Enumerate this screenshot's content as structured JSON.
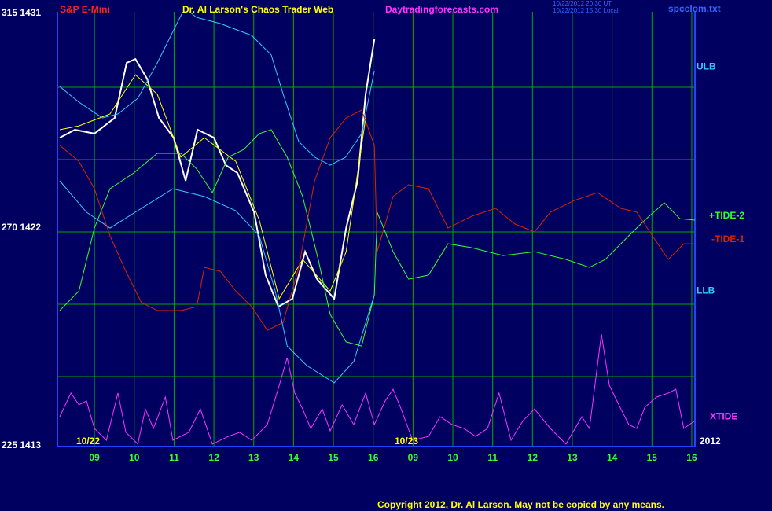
{
  "chart_data": {
    "type": "line",
    "title": "S&P E-Mini",
    "subtitle": "Dr. Al Larson's Chaos Trader Web",
    "site": "Daytradingforecasts.com",
    "timestamps": [
      "10/22/2012 20:30 UT",
      "10/22/2012 15:30 Local"
    ],
    "file": "spcclom.txt",
    "copyright": "Copyright 2012, Dr. Al Larson. May not be copied by any means.",
    "annotations": [
      "10/22",
      "10/23",
      "2012"
    ],
    "xlim": [
      8.07,
      24.08
    ],
    "ylim": [
      1413.1,
      1431.13
    ],
    "xticks": [
      {
        "value": 9,
        "label": "09"
      },
      10,
      11,
      12,
      13,
      14,
      15,
      16,
      {
        "value": 17,
        "label": "09"
      },
      {
        "value": 18,
        "label": "10"
      },
      {
        "value": 19,
        "label": "11"
      },
      {
        "value": 20,
        "label": "12"
      },
      {
        "value": 21,
        "label": "13"
      },
      {
        "value": 22,
        "label": "14"
      },
      {
        "value": 23,
        "label": "15"
      },
      {
        "value": 24,
        "label": "16"
      }
    ],
    "yticks": [
      {
        "value": 1431,
        "label": "315 1431"
      },
      {
        "value": 1422,
        "label": "270 1422"
      },
      {
        "value": 1413,
        "label": "225 1413"
      }
    ],
    "ygrid": [
      1416,
      1419,
      1422,
      1425,
      1428
    ],
    "grid": true,
    "series": [
      {
        "color": "#ffffff",
        "x": [
          8.13,
          8.51,
          9.0,
          9.51,
          9.81,
          10.03,
          10.32,
          10.62,
          10.99,
          11.29,
          11.59,
          12.0,
          12.3,
          12.59,
          13.01,
          13.3,
          13.62,
          13.97,
          14.29,
          14.59,
          15.02,
          15.32,
          15.61,
          15.81,
          16.03
        ],
        "values": [
          1425.91,
          1426.24,
          1426.08,
          1426.73,
          1429.01,
          1429.17,
          1428.36,
          1426.73,
          1425.91,
          1424.12,
          1426.24,
          1425.91,
          1424.77,
          1424.45,
          1422.82,
          1420.21,
          1418.9,
          1419.23,
          1421.18,
          1420.04,
          1419.23,
          1422.16,
          1424.12,
          1427.71,
          1429.99
        ]
      },
      {
        "color": "#ffff00",
        "x": [
          8.13,
          8.61,
          9.39,
          10.03,
          10.58,
          11.17,
          11.76,
          12.55,
          13.14,
          13.64,
          14.23,
          14.92,
          15.32,
          15.81
        ],
        "values": [
          1426.24,
          1426.4,
          1426.89,
          1428.52,
          1427.71,
          1425.1,
          1425.91,
          1424.93,
          1422.49,
          1419.23,
          1420.86,
          1419.55,
          1421.18,
          1426.73
        ]
      },
      {
        "name": "ULB",
        "color": "#33ccff",
        "x": [
          8.13,
          8.61,
          9.2,
          9.59,
          10.09,
          10.58,
          10.97,
          11.27,
          11.56,
          12.16,
          12.95,
          13.44,
          13.74,
          14.13,
          14.53,
          14.92,
          15.31,
          15.71,
          16.03
        ],
        "values": [
          1428.03,
          1427.38,
          1426.73,
          1426.89,
          1427.54,
          1429.01,
          1430.31,
          1431.29,
          1430.9,
          1430.64,
          1430.15,
          1429.34,
          1427.71,
          1425.75,
          1425.1,
          1424.77,
          1425.1,
          1426.08,
          1428.68
        ]
      },
      {
        "name": "+TIDE-2",
        "color": "#33ff33",
        "x": [
          8.13,
          8.61,
          9.0,
          9.39,
          9.99,
          10.58,
          11.17,
          11.57,
          11.96,
          12.36,
          12.75,
          13.14,
          13.44,
          13.84,
          14.23,
          14.62,
          14.92,
          15.32,
          15.71,
          16.03,
          16.1,
          16.5,
          16.89,
          17.39,
          17.88,
          18.47,
          19.26,
          20.05,
          20.84,
          21.43,
          21.83,
          22.42,
          22.82,
          23.31,
          23.7,
          24.08
        ],
        "values": [
          1418.74,
          1419.55,
          1422.16,
          1423.79,
          1424.45,
          1425.26,
          1425.26,
          1424.61,
          1423.63,
          1425.1,
          1425.42,
          1426.08,
          1426.24,
          1425.1,
          1423.47,
          1420.86,
          1418.58,
          1417.44,
          1417.27,
          1419.39,
          1422.82,
          1421.18,
          1420.04,
          1420.21,
          1421.51,
          1421.35,
          1421.02,
          1421.18,
          1420.86,
          1420.53,
          1420.86,
          1421.84,
          1422.49,
          1423.21,
          1422.55,
          1422.49
        ]
      },
      {
        "name": "-TIDE-1",
        "color": "#dd2200",
        "x": [
          8.13,
          8.61,
          9.0,
          9.39,
          9.79,
          10.18,
          10.58,
          11.17,
          11.57,
          11.76,
          12.16,
          12.55,
          12.95,
          13.34,
          13.74,
          14.13,
          14.53,
          14.92,
          15.32,
          15.71,
          16.03,
          16.1,
          16.5,
          16.89,
          17.39,
          17.88,
          18.47,
          19.07,
          19.56,
          20.05,
          20.45,
          21.04,
          21.63,
          22.22,
          22.62,
          23.01,
          23.41,
          23.8,
          24.08
        ],
        "values": [
          1425.59,
          1424.93,
          1423.79,
          1421.84,
          1420.37,
          1419.07,
          1418.74,
          1418.74,
          1418.9,
          1420.53,
          1420.37,
          1419.55,
          1418.9,
          1417.92,
          1418.25,
          1420.53,
          1424.12,
          1425.91,
          1426.73,
          1427.05,
          1425.59,
          1421.18,
          1423.47,
          1423.96,
          1423.79,
          1422.16,
          1422.65,
          1422.98,
          1422.33,
          1422.0,
          1422.82,
          1423.3,
          1423.63,
          1422.98,
          1422.82,
          1421.84,
          1420.86,
          1421.51,
          1421.51
        ]
      },
      {
        "name": "LLB",
        "color": "#33ccff",
        "x": [
          8.13,
          8.8,
          9.39,
          10.18,
          10.97,
          11.76,
          12.55,
          13.14,
          13.54,
          13.84,
          14.33,
          15.02,
          15.51,
          16.03
        ],
        "values": [
          1424.12,
          1422.82,
          1422.16,
          1422.98,
          1423.79,
          1423.47,
          1422.88,
          1421.84,
          1419.55,
          1417.27,
          1416.46,
          1415.74,
          1416.62,
          1419.39
        ]
      },
      {
        "name": "XTIDE",
        "color": "#ff33ff",
        "x": [
          8.13,
          8.41,
          8.61,
          8.8,
          9.0,
          9.3,
          9.59,
          9.79,
          10.09,
          10.28,
          10.48,
          10.78,
          10.97,
          11.37,
          11.66,
          11.96,
          12.36,
          12.65,
          12.95,
          13.34,
          13.64,
          13.84,
          14.03,
          14.23,
          14.43,
          14.72,
          14.92,
          15.22,
          15.51,
          15.81,
          16.03,
          16.3,
          16.5,
          16.7,
          16.99,
          17.39,
          17.68,
          17.98,
          18.28,
          18.57,
          18.87,
          19.16,
          19.46,
          19.76,
          20.05,
          20.45,
          20.84,
          21.24,
          21.43,
          21.73,
          21.93,
          22.22,
          22.42,
          22.62,
          22.82,
          23.11,
          23.41,
          23.6,
          23.8,
          24.08
        ],
        "values": [
          1414.34,
          1415.32,
          1414.83,
          1414.99,
          1413.85,
          1413.36,
          1415.32,
          1413.69,
          1413.2,
          1414.66,
          1413.85,
          1415.15,
          1413.36,
          1413.69,
          1414.66,
          1413.2,
          1413.52,
          1413.69,
          1413.36,
          1414.01,
          1415.64,
          1416.78,
          1415.32,
          1414.66,
          1413.85,
          1414.66,
          1413.75,
          1414.83,
          1414.01,
          1415.32,
          1414.01,
          1414.99,
          1415.48,
          1414.66,
          1413.36,
          1413.52,
          1414.34,
          1414.01,
          1413.85,
          1413.52,
          1413.85,
          1415.32,
          1413.36,
          1414.17,
          1414.66,
          1413.85,
          1413.2,
          1414.34,
          1413.85,
          1417.76,
          1415.64,
          1414.66,
          1414.01,
          1413.85,
          1414.73,
          1415.15,
          1415.32,
          1415.48,
          1413.85,
          1414.17
        ]
      }
    ]
  }
}
